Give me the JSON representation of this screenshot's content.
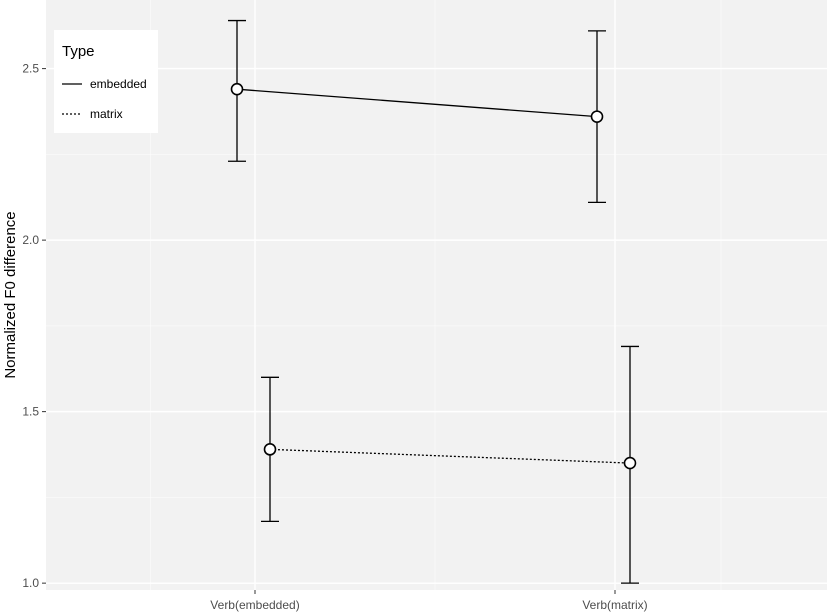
{
  "chart_data": {
    "type": "line",
    "title": "",
    "xlabel": "",
    "ylabel": "Normalized F0 difference",
    "categories": [
      "Verb(embedded)",
      "Verb(matrix)"
    ],
    "ylim": [
      0.98,
      2.7
    ],
    "yticks": [
      1.0,
      1.5,
      2.0,
      2.5
    ],
    "ytick_labels": [
      "1.0",
      "1.5",
      "2.0",
      "2.5"
    ],
    "grid": true,
    "legend": {
      "title": "Type",
      "placement": "top-left"
    },
    "series": [
      {
        "name": "embedded",
        "linestyle": "solid",
        "values": [
          2.44,
          2.36
        ],
        "error_lower": [
          2.23,
          2.11
        ],
        "error_upper": [
          2.64,
          2.61
        ]
      },
      {
        "name": "matrix",
        "linestyle": "dotted",
        "values": [
          1.39,
          1.35
        ],
        "error_lower": [
          1.18,
          1.0
        ],
        "error_upper": [
          1.6,
          1.69
        ]
      }
    ],
    "colors": {
      "panel": "#f2f2f2",
      "grid_major": "#ffffff",
      "line": "#000000",
      "point_fill": "#ffffff",
      "tick_text": "#4d4d4d"
    }
  }
}
